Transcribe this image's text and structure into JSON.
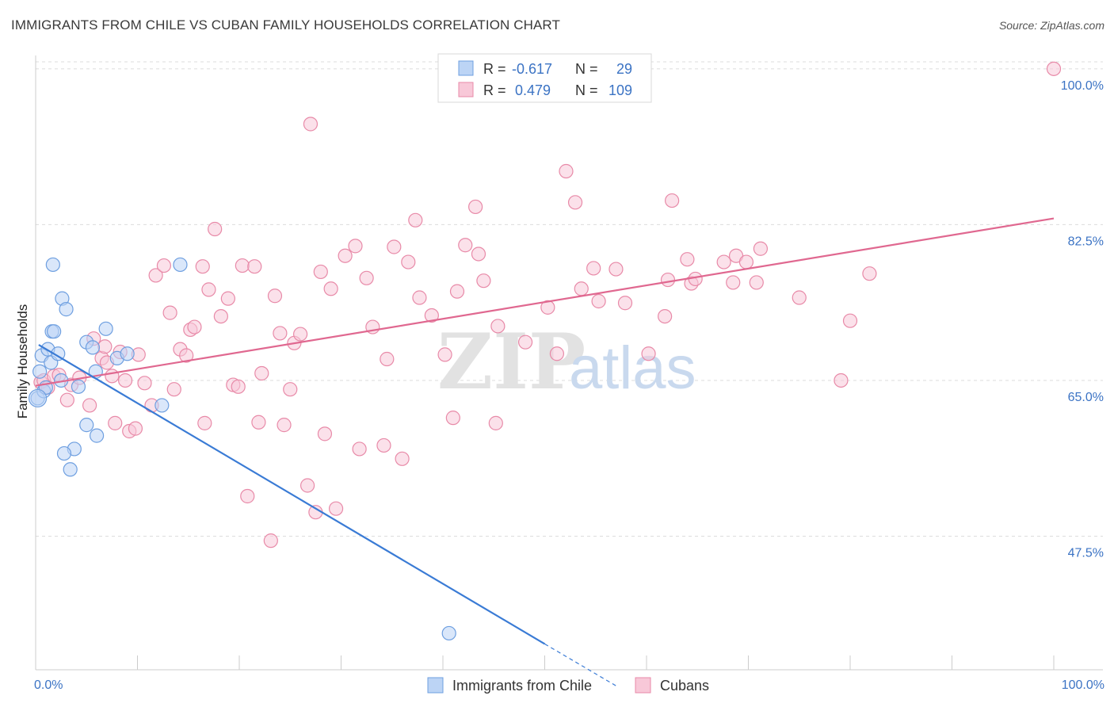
{
  "header": {
    "title": "IMMIGRANTS FROM CHILE VS CUBAN FAMILY HOUSEHOLDS CORRELATION CHART",
    "source": "Source: ZipAtlas.com"
  },
  "watermark": {
    "zip": "ZIP",
    "atlas": "atlas"
  },
  "legend": {
    "r_label": "R =",
    "n_label": "N =",
    "rows": [
      {
        "name": "Immigrants from Chile",
        "r": "-0.617",
        "n": "29",
        "fill": "#bcd4f5",
        "stroke": "#6e9fe0"
      },
      {
        "name": "Cubans",
        "r": "0.479",
        "n": "109",
        "fill": "#f8c8d8",
        "stroke": "#e88aa8"
      }
    ]
  },
  "chart_data": {
    "type": "scatter",
    "title": "IMMIGRANTS FROM CHILE VS CUBAN FAMILY HOUSEHOLDS CORRELATION CHART",
    "xlabel": "",
    "ylabel": "Family Households",
    "xlim": [
      0,
      100
    ],
    "ylim": [
      32.5,
      101.5
    ],
    "x_tick_labels": [
      {
        "value": 0,
        "label": "0.0%"
      },
      {
        "value": 100,
        "label": "100.0%"
      }
    ],
    "y_tick_labels": [
      {
        "value": 100,
        "label": "100.0%"
      },
      {
        "value": 82.5,
        "label": "82.5%"
      },
      {
        "value": 65,
        "label": "65.0%"
      },
      {
        "value": 47.5,
        "label": "47.5%"
      }
    ],
    "grid": true,
    "series": [
      {
        "name": "Immigrants from Chile",
        "color": "#6e9fe0",
        "fill": "#bcd4f5",
        "trend": {
          "x": [
            0,
            50
          ],
          "y": [
            69.0,
            35.4
          ],
          "dashed_to": [
            57.0,
            30.7
          ],
          "color": "#3a7bd5"
        },
        "points": [
          [
            0.2,
            63.0
          ],
          [
            0.4,
            66.0
          ],
          [
            0.6,
            67.8
          ],
          [
            0.8,
            63.8
          ],
          [
            1.0,
            64.2
          ],
          [
            1.2,
            68.5
          ],
          [
            1.5,
            67.0
          ],
          [
            1.6,
            70.5
          ],
          [
            1.8,
            70.5
          ],
          [
            2.2,
            68.0
          ],
          [
            2.5,
            65.0
          ],
          [
            1.7,
            78.0
          ],
          [
            2.6,
            74.2
          ],
          [
            3.0,
            73.0
          ],
          [
            3.4,
            55.0
          ],
          [
            3.8,
            57.3
          ],
          [
            2.8,
            56.8
          ],
          [
            4.2,
            64.3
          ],
          [
            5.0,
            60.0
          ],
          [
            5.0,
            69.3
          ],
          [
            5.6,
            68.7
          ],
          [
            5.9,
            66.0
          ],
          [
            6.0,
            58.8
          ],
          [
            6.9,
            70.8
          ],
          [
            8.0,
            67.5
          ],
          [
            9.0,
            68.0
          ],
          [
            12.4,
            62.2
          ],
          [
            14.2,
            78.0
          ],
          [
            40.6,
            36.6
          ]
        ]
      },
      {
        "name": "Cubans",
        "color": "#e88aa8",
        "fill": "#f8c8d8",
        "trend": {
          "x": [
            0,
            100
          ],
          "y": [
            64.4,
            83.2
          ],
          "color": "#e06890"
        },
        "points": [
          [
            0.5,
            64.8
          ],
          [
            0.8,
            65.0
          ],
          [
            1.2,
            64.2
          ],
          [
            1.8,
            65.5
          ],
          [
            2.3,
            65.6
          ],
          [
            3.1,
            62.8
          ],
          [
            3.5,
            64.5
          ],
          [
            4.3,
            65.3
          ],
          [
            5.3,
            62.2
          ],
          [
            5.7,
            69.7
          ],
          [
            6.5,
            67.5
          ],
          [
            6.8,
            68.8
          ],
          [
            7.0,
            67.0
          ],
          [
            7.5,
            65.5
          ],
          [
            7.8,
            60.2
          ],
          [
            8.3,
            68.2
          ],
          [
            8.8,
            65.0
          ],
          [
            9.2,
            59.3
          ],
          [
            9.8,
            59.6
          ],
          [
            10.1,
            67.9
          ],
          [
            10.7,
            64.7
          ],
          [
            11.4,
            62.2
          ],
          [
            11.8,
            76.8
          ],
          [
            12.6,
            77.9
          ],
          [
            13.2,
            72.6
          ],
          [
            13.6,
            64.0
          ],
          [
            14.2,
            68.5
          ],
          [
            14.8,
            67.8
          ],
          [
            15.2,
            70.7
          ],
          [
            15.6,
            71.0
          ],
          [
            16.4,
            77.8
          ],
          [
            16.6,
            60.2
          ],
          [
            17.0,
            75.2
          ],
          [
            17.6,
            82.0
          ],
          [
            18.2,
            72.2
          ],
          [
            18.9,
            74.2
          ],
          [
            19.4,
            64.5
          ],
          [
            19.9,
            64.3
          ],
          [
            20.3,
            77.9
          ],
          [
            20.8,
            52.0
          ],
          [
            21.5,
            77.8
          ],
          [
            21.9,
            60.3
          ],
          [
            22.2,
            65.8
          ],
          [
            23.1,
            47.0
          ],
          [
            23.5,
            74.5
          ],
          [
            24.0,
            70.3
          ],
          [
            24.4,
            60.0
          ],
          [
            25.0,
            64.0
          ],
          [
            25.4,
            69.2
          ],
          [
            26.0,
            70.2
          ],
          [
            26.7,
            53.2
          ],
          [
            27.0,
            93.8
          ],
          [
            27.5,
            50.2
          ],
          [
            28.0,
            77.2
          ],
          [
            28.4,
            59.0
          ],
          [
            29.0,
            75.3
          ],
          [
            29.5,
            50.6
          ],
          [
            30.4,
            79.0
          ],
          [
            31.4,
            80.1
          ],
          [
            31.8,
            57.3
          ],
          [
            32.5,
            76.5
          ],
          [
            33.1,
            71.0
          ],
          [
            34.2,
            57.7
          ],
          [
            34.5,
            67.4
          ],
          [
            35.2,
            80.0
          ],
          [
            36.0,
            56.2
          ],
          [
            36.6,
            78.3
          ],
          [
            37.3,
            83.0
          ],
          [
            37.7,
            74.3
          ],
          [
            38.9,
            72.3
          ],
          [
            40.2,
            67.9
          ],
          [
            41.0,
            60.8
          ],
          [
            41.4,
            75.0
          ],
          [
            42.2,
            80.2
          ],
          [
            43.2,
            84.5
          ],
          [
            43.5,
            79.2
          ],
          [
            44.0,
            76.2
          ],
          [
            45.2,
            60.2
          ],
          [
            45.4,
            71.1
          ],
          [
            48.1,
            69.3
          ],
          [
            50.3,
            73.2
          ],
          [
            51.2,
            68.0
          ],
          [
            52.1,
            88.5
          ],
          [
            53.0,
            85.0
          ],
          [
            53.6,
            75.3
          ],
          [
            54.8,
            77.6
          ],
          [
            55.3,
            73.9
          ],
          [
            57.0,
            77.5
          ],
          [
            57.9,
            73.7
          ],
          [
            60.2,
            68.0
          ],
          [
            61.8,
            72.2
          ],
          [
            62.1,
            76.3
          ],
          [
            62.5,
            85.2
          ],
          [
            64.0,
            78.6
          ],
          [
            64.4,
            75.9
          ],
          [
            64.8,
            76.4
          ],
          [
            67.6,
            78.3
          ],
          [
            68.5,
            76.0
          ],
          [
            68.8,
            79.0
          ],
          [
            69.8,
            78.3
          ],
          [
            70.8,
            76.0
          ],
          [
            71.2,
            79.8
          ],
          [
            75.0,
            74.3
          ],
          [
            79.1,
            65.0
          ],
          [
            80.0,
            71.7
          ],
          [
            81.9,
            77.0
          ],
          [
            100.0,
            100.0
          ]
        ]
      }
    ]
  },
  "bottom_legend": [
    {
      "label": "Immigrants from Chile"
    },
    {
      "label": "Cubans"
    }
  ]
}
